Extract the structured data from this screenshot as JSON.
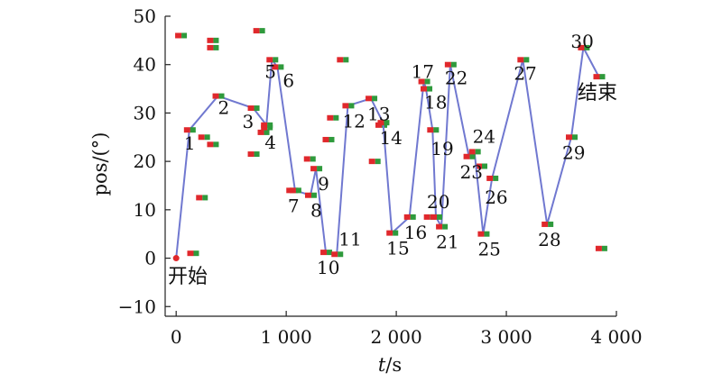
{
  "chart_data": {
    "type": "line",
    "xlabel_italic": "t",
    "xlabel_unit": "/s",
    "ylabel": "pos/(°)",
    "xlim": [
      -100,
      4000
    ],
    "ylim": [
      -12,
      50
    ],
    "x_ticks": [
      0,
      1000,
      2000,
      3000,
      4000
    ],
    "x_tick_labels": [
      "0",
      "1 000",
      "2 000",
      "3 000",
      "4 000"
    ],
    "y_ticks": [
      -10,
      0,
      10,
      20,
      30,
      40,
      50
    ],
    "y_tick_labels": [
      "−10",
      "0",
      "10",
      "20",
      "30",
      "40",
      "50"
    ],
    "colors": {
      "line": "#7078d0",
      "marker_red": "#e0282c",
      "marker_green": "#2f9a3c",
      "start": "#e0282c",
      "axis": "#222222"
    },
    "start_label": "开始",
    "end_label": "结束",
    "series": [
      {
        "x": [
          0,
          120,
          380,
          700,
          820,
          870,
          920,
          1080,
          1220,
          1270,
          1360,
          1460,
          1560,
          1770,
          1880,
          1960,
          2120,
          2250,
          2270,
          2330,
          2360,
          2410,
          2490,
          2660,
          2710,
          2790,
          2870,
          3150,
          3370,
          3590,
          3700,
          3840
        ],
        "y": [
          0,
          26.5,
          33.5,
          31,
          27.5,
          41,
          39.5,
          14,
          13,
          18.5,
          1.2,
          0.8,
          31.5,
          33,
          28,
          5.2,
          8.5,
          36.5,
          35,
          26.5,
          8.5,
          6.5,
          40,
          21,
          22,
          5,
          16.5,
          41,
          7,
          25,
          43.5,
          37.5
        ],
        "labels": [
          "",
          "1",
          "2",
          "3",
          "4",
          "5",
          "6",
          "7",
          "8",
          "9",
          "10",
          "11",
          "12",
          "13",
          "14",
          "15",
          "16",
          "17",
          "18",
          "19",
          "20",
          "21",
          "22",
          "23",
          "24",
          "25",
          "26",
          "27",
          "28",
          "29",
          "30",
          ""
        ]
      }
    ],
    "scatter_markers": [
      {
        "x": 40,
        "y": 46
      },
      {
        "x": 330,
        "y": 45
      },
      {
        "x": 330,
        "y": 43.5
      },
      {
        "x": 750,
        "y": 47
      },
      {
        "x": 250,
        "y": 25
      },
      {
        "x": 330,
        "y": 23.5
      },
      {
        "x": 230,
        "y": 12.5
      },
      {
        "x": 150,
        "y": 1
      },
      {
        "x": 700,
        "y": 21.5
      },
      {
        "x": 790,
        "y": 26
      },
      {
        "x": 820,
        "y": 27
      },
      {
        "x": 1050,
        "y": 14
      },
      {
        "x": 1210,
        "y": 20.5
      },
      {
        "x": 1380,
        "y": 24.5
      },
      {
        "x": 1420,
        "y": 29
      },
      {
        "x": 1510,
        "y": 41
      },
      {
        "x": 1800,
        "y": 20
      },
      {
        "x": 1860,
        "y": 27.5
      },
      {
        "x": 2300,
        "y": 8.5
      },
      {
        "x": 2770,
        "y": 19
      },
      {
        "x": 3860,
        "y": 2
      }
    ]
  }
}
